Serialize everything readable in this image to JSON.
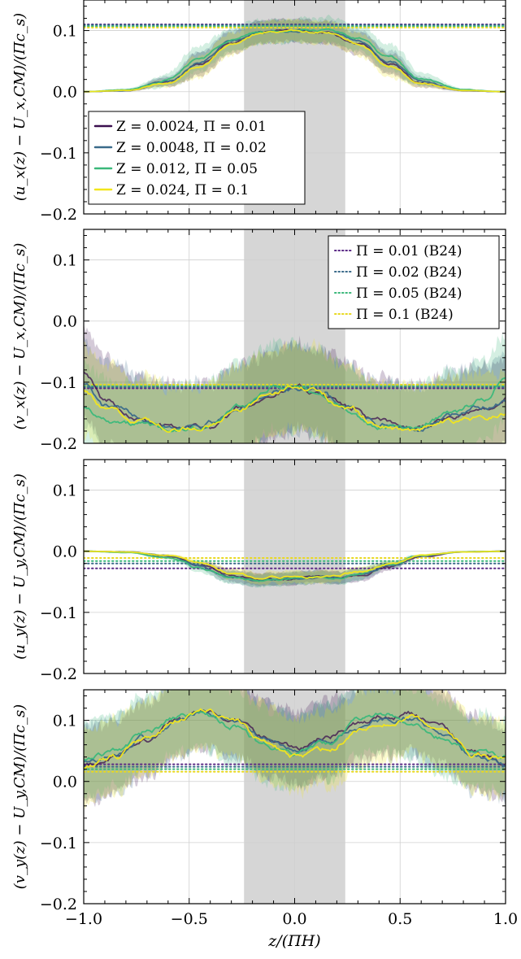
{
  "chart_data": [
    {
      "type": "line",
      "ylabel": "(u_x(z) − U_x,CM)/(Πc_s)",
      "xlim": [
        -1.0,
        1.0
      ],
      "ylim": [
        -0.2,
        0.15
      ],
      "yticks": [
        -0.2,
        -0.1,
        0.0,
        0.1
      ],
      "ytick_labels": [
        "−0.2",
        "−0.1",
        "0.0",
        "0.1"
      ],
      "grid": true,
      "shaded_region": [
        -0.24,
        0.24
      ],
      "legend": {
        "position": "lower-left",
        "entries": [
          {
            "label": "Z = 0.0024, Π = 0.01",
            "color": "#3b0f4f"
          },
          {
            "label": "Z = 0.0048, Π = 0.02",
            "color": "#3a6a8a"
          },
          {
            "label": "Z = 0.012, Π = 0.05",
            "color": "#3ab87a"
          },
          {
            "label": "Z = 0.024, Π = 0.1",
            "color": "#f2e61a"
          }
        ]
      },
      "series": [
        {
          "name": "Z = 0.0024, Π = 0.01",
          "color": "#3b0f4f",
          "x": [
            -1.0,
            -0.8,
            -0.6,
            -0.45,
            -0.3,
            -0.15,
            0.0,
            0.15,
            0.3,
            0.45,
            0.6,
            0.8,
            1.0
          ],
          "y": [
            0.0,
            0.002,
            0.015,
            0.045,
            0.08,
            0.098,
            0.1,
            0.098,
            0.08,
            0.045,
            0.015,
            0.002,
            0.0
          ],
          "band": 0.018
        },
        {
          "name": "Z = 0.0048, Π = 0.02",
          "color": "#3a6a8a",
          "x": [
            -1.0,
            -0.8,
            -0.6,
            -0.45,
            -0.3,
            -0.15,
            0.0,
            0.15,
            0.3,
            0.45,
            0.6,
            0.8,
            1.0
          ],
          "y": [
            0.0,
            0.002,
            0.017,
            0.048,
            0.082,
            0.097,
            0.1,
            0.099,
            0.083,
            0.048,
            0.016,
            0.002,
            0.0
          ],
          "band": 0.018
        },
        {
          "name": "Z = 0.012, Π = 0.05",
          "color": "#3ab87a",
          "x": [
            -1.0,
            -0.8,
            -0.6,
            -0.45,
            -0.3,
            -0.15,
            0.0,
            0.15,
            0.3,
            0.45,
            0.6,
            0.8,
            1.0
          ],
          "y": [
            0.0,
            0.003,
            0.02,
            0.055,
            0.086,
            0.098,
            0.1,
            0.1,
            0.088,
            0.055,
            0.02,
            0.003,
            0.0
          ],
          "band": 0.02
        },
        {
          "name": "Z = 0.024, Π = 0.1",
          "color": "#f2e61a",
          "x": [
            -1.0,
            -0.8,
            -0.6,
            -0.45,
            -0.3,
            -0.15,
            0.0,
            0.15,
            0.3,
            0.45,
            0.6,
            0.8,
            1.0
          ],
          "y": [
            0.0,
            0.002,
            0.014,
            0.042,
            0.078,
            0.096,
            0.1,
            0.097,
            0.078,
            0.042,
            0.014,
            0.002,
            0.0
          ],
          "band": 0.018
        }
      ],
      "reference_lines": [
        {
          "name": "Π = 0.01 (B24)",
          "color": "#5b2a86",
          "y": 0.11
        },
        {
          "name": "Π = 0.02 (B24)",
          "color": "#3a6a8a",
          "y": 0.109
        },
        {
          "name": "Π = 0.05 (B24)",
          "color": "#3ab87a",
          "y": 0.107
        },
        {
          "name": "Π = 0.1 (B24)",
          "color": "#e8d820",
          "y": 0.105
        }
      ]
    },
    {
      "type": "line",
      "ylabel": "(v_x(z) − U_x,CM)/(Πc_s)",
      "xlim": [
        -1.0,
        1.0
      ],
      "ylim": [
        -0.2,
        0.15
      ],
      "yticks": [
        -0.2,
        -0.1,
        0.0,
        0.1
      ],
      "ytick_labels": [
        "−0.2",
        "−0.1",
        "0.0",
        "0.1"
      ],
      "grid": true,
      "shaded_region": [
        -0.24,
        0.24
      ],
      "legend": {
        "position": "top-right",
        "entries": [
          {
            "label": "Π = 0.01 (B24)",
            "color": "#5b2a86"
          },
          {
            "label": "Π = 0.02 (B24)",
            "color": "#3a6a8a"
          },
          {
            "label": "Π = 0.05 (B24)",
            "color": "#3ab87a"
          },
          {
            "label": "Π = 0.1 (B24)",
            "color": "#e8d820"
          }
        ]
      },
      "series": [
        {
          "name": "Z = 0.0024, Π = 0.01",
          "color": "#3b0f4f",
          "x": [
            -1.0,
            -0.9,
            -0.75,
            -0.55,
            -0.4,
            -0.25,
            -0.1,
            0.0,
            0.1,
            0.25,
            0.4,
            0.55,
            0.75,
            0.9,
            1.0
          ],
          "y": [
            -0.08,
            -0.13,
            -0.155,
            -0.175,
            -0.17,
            -0.14,
            -0.115,
            -0.11,
            -0.115,
            -0.14,
            -0.165,
            -0.175,
            -0.16,
            -0.145,
            -0.12
          ],
          "band": 0.07
        },
        {
          "name": "Z = 0.0048, Π = 0.02",
          "color": "#3a6a8a",
          "x": [
            -1.0,
            -0.9,
            -0.75,
            -0.55,
            -0.4,
            -0.25,
            -0.1,
            0.0,
            0.1,
            0.25,
            0.4,
            0.55,
            0.75,
            0.9,
            1.0
          ],
          "y": [
            -0.1,
            -0.14,
            -0.155,
            -0.17,
            -0.165,
            -0.14,
            -0.115,
            -0.11,
            -0.115,
            -0.14,
            -0.165,
            -0.18,
            -0.155,
            -0.14,
            -0.13
          ],
          "band": 0.07
        },
        {
          "name": "Z = 0.012, Π = 0.05",
          "color": "#3ab87a",
          "x": [
            -1.0,
            -0.9,
            -0.75,
            -0.55,
            -0.4,
            -0.25,
            -0.1,
            0.0,
            0.1,
            0.25,
            0.4,
            0.55,
            0.75,
            0.9,
            1.0
          ],
          "y": [
            -0.14,
            -0.16,
            -0.17,
            -0.18,
            -0.17,
            -0.14,
            -0.11,
            -0.108,
            -0.118,
            -0.15,
            -0.175,
            -0.175,
            -0.15,
            -0.13,
            -0.09
          ],
          "band": 0.07
        },
        {
          "name": "Z = 0.024, Π = 0.1",
          "color": "#f2e61a",
          "x": [
            -1.0,
            -0.9,
            -0.75,
            -0.55,
            -0.4,
            -0.25,
            -0.1,
            0.0,
            0.1,
            0.25,
            0.4,
            0.55,
            0.75,
            0.9,
            1.0
          ],
          "y": [
            -0.11,
            -0.145,
            -0.16,
            -0.175,
            -0.17,
            -0.14,
            -0.113,
            -0.108,
            -0.115,
            -0.145,
            -0.17,
            -0.18,
            -0.165,
            -0.16,
            -0.15
          ],
          "band": 0.07
        }
      ],
      "reference_lines": [
        {
          "name": "Π = 0.01 (B24)",
          "color": "#5b2a86",
          "y": -0.11
        },
        {
          "name": "Π = 0.02 (B24)",
          "color": "#3a6a8a",
          "y": -0.108
        },
        {
          "name": "Π = 0.05 (B24)",
          "color": "#3ab87a",
          "y": -0.106
        },
        {
          "name": "Π = 0.1 (B24)",
          "color": "#e8d820",
          "y": -0.104
        }
      ]
    },
    {
      "type": "line",
      "ylabel": "(u_y(z) − U_y,CM)/(Πc_s)",
      "xlim": [
        -1.0,
        1.0
      ],
      "ylim": [
        -0.2,
        0.15
      ],
      "yticks": [
        -0.2,
        -0.1,
        0.0,
        0.1
      ],
      "ytick_labels": [
        "−0.2",
        "−0.1",
        "0.0",
        "0.1"
      ],
      "grid": true,
      "shaded_region": [
        -0.24,
        0.24
      ],
      "series": [
        {
          "name": "Z = 0.0024, Π = 0.01",
          "color": "#3b0f4f",
          "x": [
            -1.0,
            -0.8,
            -0.6,
            -0.45,
            -0.3,
            -0.15,
            0.0,
            0.15,
            0.3,
            0.45,
            0.6,
            0.8,
            1.0
          ],
          "y": [
            0.0,
            -0.001,
            -0.008,
            -0.022,
            -0.04,
            -0.046,
            -0.045,
            -0.044,
            -0.04,
            -0.024,
            -0.008,
            -0.001,
            0.0
          ],
          "band": 0.01
        },
        {
          "name": "Z = 0.0048, Π = 0.02",
          "color": "#3a6a8a",
          "x": [
            -1.0,
            -0.8,
            -0.6,
            -0.45,
            -0.3,
            -0.15,
            0.0,
            0.15,
            0.3,
            0.45,
            0.6,
            0.8,
            1.0
          ],
          "y": [
            0.0,
            -0.001,
            -0.008,
            -0.024,
            -0.041,
            -0.046,
            -0.045,
            -0.044,
            -0.039,
            -0.023,
            -0.007,
            -0.001,
            0.0
          ],
          "band": 0.01
        },
        {
          "name": "Z = 0.012, Π = 0.05",
          "color": "#3ab87a",
          "x": [
            -1.0,
            -0.8,
            -0.6,
            -0.45,
            -0.3,
            -0.15,
            0.0,
            0.15,
            0.3,
            0.45,
            0.6,
            0.8,
            1.0
          ],
          "y": [
            0.0,
            -0.002,
            -0.01,
            -0.027,
            -0.043,
            -0.047,
            -0.045,
            -0.043,
            -0.038,
            -0.022,
            -0.007,
            -0.001,
            0.0
          ],
          "band": 0.01
        },
        {
          "name": "Z = 0.024, Π = 0.1",
          "color": "#f2e61a",
          "x": [
            -1.0,
            -0.8,
            -0.6,
            -0.45,
            -0.3,
            -0.15,
            0.0,
            0.15,
            0.3,
            0.45,
            0.6,
            0.8,
            1.0
          ],
          "y": [
            0.0,
            -0.001,
            -0.007,
            -0.02,
            -0.037,
            -0.043,
            -0.042,
            -0.041,
            -0.034,
            -0.02,
            -0.006,
            -0.001,
            0.0
          ],
          "band": 0.01
        }
      ],
      "reference_lines": [
        {
          "name": "Π = 0.01 (B24)",
          "color": "#5b2a86",
          "y": -0.028
        },
        {
          "name": "Π = 0.02 (B24)",
          "color": "#3a6a8a",
          "y": -0.02
        },
        {
          "name": "Π = 0.05 (B24)",
          "color": "#3ab87a",
          "y": -0.016
        },
        {
          "name": "Π = 0.1 (B24)",
          "color": "#e8d820",
          "y": -0.011
        }
      ]
    },
    {
      "type": "line",
      "ylabel": "(v_y(z) − U_y,CM)/(Πc_s)",
      "xlabel": "z/(ΠH)",
      "xlim": [
        -1.0,
        1.0
      ],
      "ylim": [
        -0.2,
        0.15
      ],
      "xticks": [
        -1.0,
        -0.5,
        0.0,
        0.5,
        1.0
      ],
      "xtick_labels": [
        "−1.0",
        "−0.5",
        "0.0",
        "0.5",
        "1.0"
      ],
      "yticks": [
        -0.2,
        -0.1,
        0.0,
        0.1
      ],
      "ytick_labels": [
        "−0.2",
        "−0.1",
        "0.0",
        "0.1"
      ],
      "grid": true,
      "shaded_region": [
        -0.24,
        0.24
      ],
      "series": [
        {
          "name": "Z = 0.0024, Π = 0.01",
          "color": "#3b0f4f",
          "x": [
            -1.0,
            -0.85,
            -0.7,
            -0.55,
            -0.42,
            -0.3,
            -0.15,
            0.0,
            0.15,
            0.3,
            0.42,
            0.55,
            0.7,
            0.85,
            1.0
          ],
          "y": [
            0.025,
            0.04,
            0.07,
            0.1,
            0.115,
            0.1,
            0.07,
            0.055,
            0.07,
            0.095,
            0.105,
            0.11,
            0.085,
            0.045,
            0.03
          ],
          "band": 0.06
        },
        {
          "name": "Z = 0.0048, Π = 0.02",
          "color": "#3a6a8a",
          "x": [
            -1.0,
            -0.85,
            -0.7,
            -0.55,
            -0.42,
            -0.3,
            -0.15,
            0.0,
            0.15,
            0.3,
            0.42,
            0.55,
            0.7,
            0.85,
            1.0
          ],
          "y": [
            0.03,
            0.045,
            0.072,
            0.1,
            0.112,
            0.098,
            0.068,
            0.052,
            0.065,
            0.09,
            0.1,
            0.105,
            0.08,
            0.045,
            0.03
          ],
          "band": 0.06
        },
        {
          "name": "Z = 0.012, Π = 0.05",
          "color": "#3ab87a",
          "x": [
            -1.0,
            -0.85,
            -0.7,
            -0.55,
            -0.42,
            -0.3,
            -0.15,
            0.0,
            0.15,
            0.3,
            0.42,
            0.55,
            0.7,
            0.85,
            1.0
          ],
          "y": [
            0.035,
            0.05,
            0.08,
            0.105,
            0.11,
            0.09,
            0.06,
            0.045,
            0.06,
            0.1,
            0.112,
            0.1,
            0.075,
            0.05,
            0.04
          ],
          "band": 0.06
        },
        {
          "name": "Z = 0.024, Π = 0.1",
          "color": "#f2e61a",
          "x": [
            -1.0,
            -0.85,
            -0.7,
            -0.55,
            -0.42,
            -0.3,
            -0.15,
            0.0,
            0.15,
            0.3,
            0.42,
            0.55,
            0.7,
            0.85,
            1.0
          ],
          "y": [
            0.02,
            0.04,
            0.07,
            0.1,
            0.118,
            0.102,
            0.065,
            0.04,
            0.05,
            0.085,
            0.1,
            0.105,
            0.085,
            0.045,
            0.035
          ],
          "band": 0.06
        }
      ],
      "reference_lines": [
        {
          "name": "Π = 0.01 (B24)",
          "color": "#5b2a86",
          "y": 0.028
        },
        {
          "name": "Π = 0.02 (B24)",
          "color": "#3a6a8a",
          "y": 0.024
        },
        {
          "name": "Π = 0.05 (B24)",
          "color": "#3ab87a",
          "y": 0.02
        },
        {
          "name": "Π = 0.1 (B24)",
          "color": "#e8d820",
          "y": 0.016
        }
      ]
    }
  ]
}
